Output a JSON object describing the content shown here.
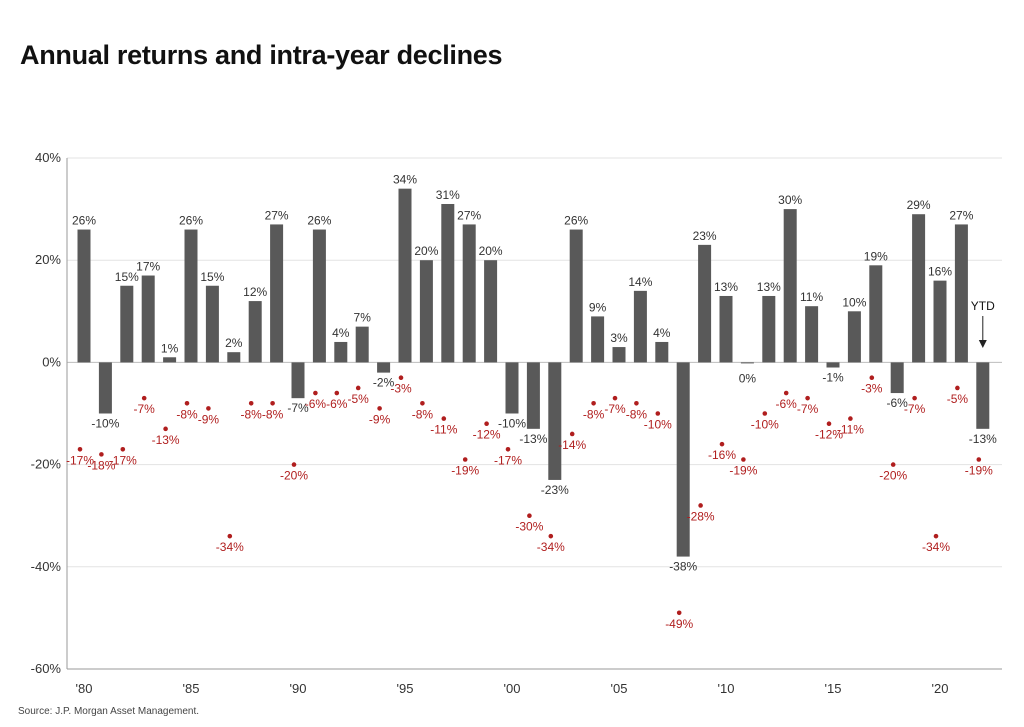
{
  "title": "Annual returns and intra-year declines",
  "source": "Source: J.P. Morgan Asset Management.",
  "colors": {
    "bar": "#595959",
    "decline": "#b01e1e",
    "grid": "#e3e3e3"
  },
  "chart_data": {
    "type": "bar",
    "title": "Annual returns and intra-year declines",
    "x": [
      1980,
      1981,
      1982,
      1983,
      1984,
      1985,
      1986,
      1987,
      1988,
      1989,
      1990,
      1991,
      1992,
      1993,
      1994,
      1995,
      1996,
      1997,
      1998,
      1999,
      2000,
      2001,
      2002,
      2003,
      2004,
      2005,
      2006,
      2007,
      2008,
      2009,
      2010,
      2011,
      2012,
      2013,
      2014,
      2015,
      2016,
      2017,
      2018,
      2019,
      2020,
      2021,
      2022
    ],
    "xtick_labels": [
      {
        "x": 1980,
        "label": "'80"
      },
      {
        "x": 1985,
        "label": "'85"
      },
      {
        "x": 1990,
        "label": "'90"
      },
      {
        "x": 1995,
        "label": "'95"
      },
      {
        "x": 2000,
        "label": "'00"
      },
      {
        "x": 2005,
        "label": "'05"
      },
      {
        "x": 2010,
        "label": "'10"
      },
      {
        "x": 2015,
        "label": "'15"
      },
      {
        "x": 2020,
        "label": "'20"
      }
    ],
    "yticks": [
      {
        "v": 40,
        "label": "40%"
      },
      {
        "v": 20,
        "label": "20%"
      },
      {
        "v": 0,
        "label": "0%"
      },
      {
        "v": -20,
        "label": "-20%"
      },
      {
        "v": -40,
        "label": "-40%"
      },
      {
        "v": -60,
        "label": "-60%"
      }
    ],
    "ylim": [
      -60,
      40
    ],
    "grid": true,
    "series": [
      {
        "kind": "bar",
        "values": [
          26,
          -10,
          15,
          17,
          1,
          26,
          15,
          2,
          12,
          27,
          -7,
          26,
          4,
          7,
          -2,
          34,
          20,
          31,
          27,
          20,
          -10,
          -13,
          -23,
          26,
          9,
          3,
          14,
          4,
          -38,
          23,
          13,
          0,
          13,
          30,
          11,
          -1,
          10,
          19,
          -6,
          29,
          16,
          27,
          -13
        ],
        "labels": [
          "26%",
          "-10%",
          "15%",
          "17%",
          "1%",
          "26%",
          "15%",
          "2%",
          "12%",
          "27%",
          "-7%",
          "26%",
          "4%",
          "7%",
          "-2%",
          "34%",
          "20%",
          "31%",
          "27%",
          "20%",
          "-10%",
          "-13%",
          "-23%",
          "26%",
          "9%",
          "3%",
          "14%",
          "4%",
          "-38%",
          "23%",
          "13%",
          "0%",
          "13%",
          "30%",
          "11%",
          "-1%",
          "10%",
          "19%",
          "-6%",
          "29%",
          "16%",
          "27%",
          "-13%"
        ]
      },
      {
        "kind": "scatter",
        "values": [
          -17,
          -18,
          -17,
          -7,
          -13,
          -8,
          -9,
          -34,
          -8,
          -8,
          -20,
          -6,
          -6,
          -5,
          -9,
          -3,
          -8,
          -11,
          -19,
          -12,
          -17,
          -30,
          -34,
          -14,
          -8,
          -7,
          -8,
          -10,
          -49,
          -28,
          -16,
          -19,
          -10,
          -6,
          -7,
          -12,
          -11,
          -3,
          -20,
          -7,
          -34,
          -5,
          -19
        ],
        "labels": [
          "-17%",
          "-18%",
          "-17%",
          "-7%",
          "-13%",
          "-8%",
          "-9%",
          "-34%",
          "-8%",
          "-8%",
          "-20%",
          "-6%",
          "-6%",
          "-5%",
          "-9%",
          "-3%",
          "-8%",
          "-11%",
          "-19%",
          "-12%",
          "-17%",
          "-30%",
          "-34%",
          "-14%",
          "-8%",
          "-7%",
          "-8%",
          "-10%",
          "-49%",
          "-28%",
          "-16%",
          "-19%",
          "-10%",
          "-6%",
          "-7%",
          "-12%",
          "-11%",
          "-3%",
          "-20%",
          "-7%",
          "-34%",
          "-5%",
          "-19%"
        ]
      }
    ],
    "annotation": {
      "text": "YTD",
      "x": 2022
    }
  }
}
